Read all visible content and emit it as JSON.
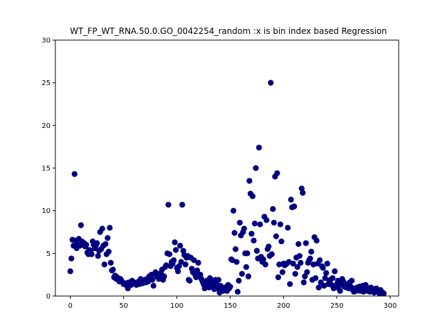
{
  "chart_data": {
    "type": "scatter",
    "title": "WT_FP_WT_RNA.50.0.GO_0042254_random :x is bin index based Regression",
    "xlabel": "",
    "ylabel": "",
    "xlim": [
      -14,
      308
    ],
    "ylim": [
      0,
      30
    ],
    "xticks": [
      0,
      50,
      100,
      150,
      200,
      250,
      300
    ],
    "yticks": [
      0,
      5,
      10,
      15,
      20,
      25,
      30
    ],
    "grid": false,
    "legend": "none",
    "marker_color": "#000080",
    "series": [
      {
        "points": [
          [
            0,
            2.9
          ],
          [
            1,
            4.4
          ],
          [
            2,
            6.6
          ],
          [
            3,
            5.9
          ],
          [
            4,
            14.3
          ],
          [
            5,
            6.5
          ],
          [
            6,
            5.6
          ],
          [
            7,
            6.0
          ],
          [
            8,
            6.7
          ],
          [
            9,
            5.9
          ],
          [
            10,
            8.3
          ],
          [
            11,
            6.4
          ],
          [
            12,
            6.0
          ],
          [
            13,
            6.2
          ],
          [
            14,
            5.8
          ],
          [
            15,
            6.0
          ],
          [
            16,
            5.1
          ],
          [
            17,
            4.9
          ],
          [
            18,
            5.4
          ],
          [
            19,
            5.3
          ],
          [
            20,
            4.9
          ],
          [
            21,
            6.4
          ],
          [
            22,
            6.0
          ],
          [
            23,
            5.6
          ],
          [
            24,
            5.9
          ],
          [
            25,
            6.2
          ],
          [
            26,
            4.7
          ],
          [
            27,
            5.3
          ],
          [
            28,
            7.5
          ],
          [
            29,
            5.5
          ],
          [
            30,
            7.9
          ],
          [
            31,
            5.9
          ],
          [
            32,
            3.7
          ],
          [
            33,
            6.1
          ],
          [
            34,
            4.9
          ],
          [
            35,
            6.8
          ],
          [
            36,
            5.2
          ],
          [
            37,
            8.0
          ],
          [
            38,
            3.9
          ],
          [
            39,
            3.0
          ],
          [
            40,
            3.1
          ],
          [
            41,
            2.2
          ],
          [
            42,
            2.4
          ],
          [
            43,
            2.0
          ],
          [
            44,
            2.2
          ],
          [
            45,
            1.9
          ],
          [
            46,
            1.7
          ],
          [
            47,
            2.0
          ],
          [
            48,
            1.8
          ],
          [
            50,
            1.4
          ],
          [
            52,
            1.5
          ],
          [
            53,
            1.2
          ],
          [
            54,
            0.9
          ],
          [
            55,
            1.6
          ],
          [
            57,
            1.3
          ],
          [
            58,
            1.8
          ],
          [
            60,
            1.6
          ],
          [
            62,
            1.3
          ],
          [
            63,
            1.5
          ],
          [
            64,
            1.7
          ],
          [
            65,
            1.4
          ],
          [
            66,
            2.0
          ],
          [
            67,
            1.8
          ],
          [
            68,
            1.5
          ],
          [
            70,
            1.9
          ],
          [
            71,
            1.6
          ],
          [
            72,
            2.0
          ],
          [
            73,
            1.7
          ],
          [
            74,
            2.3
          ],
          [
            75,
            2.1
          ],
          [
            76,
            2.5
          ],
          [
            77,
            1.9
          ],
          [
            78,
            1.2
          ],
          [
            79,
            2.6
          ],
          [
            80,
            2.8
          ],
          [
            81,
            2.3
          ],
          [
            82,
            2.4
          ],
          [
            83,
            2.0
          ],
          [
            84,
            2.1
          ],
          [
            85,
            2.7
          ],
          [
            86,
            3.1
          ],
          [
            87,
            1.9
          ],
          [
            88,
            2.3
          ],
          [
            89,
            3.4
          ],
          [
            90,
            3.6
          ],
          [
            91,
            5.0
          ],
          [
            92,
            10.7
          ],
          [
            93,
            4.9
          ],
          [
            94,
            3.5
          ],
          [
            95,
            4.0
          ],
          [
            96,
            3.8
          ],
          [
            97,
            4.2
          ],
          [
            98,
            6.3
          ],
          [
            99,
            5.4
          ],
          [
            100,
            3.3
          ],
          [
            101,
            2.9
          ],
          [
            102,
            3.5
          ],
          [
            103,
            5.9
          ],
          [
            104,
            4.0
          ],
          [
            105,
            10.7
          ],
          [
            106,
            5.3
          ],
          [
            107,
            4.8
          ],
          [
            108,
            3.7
          ],
          [
            109,
            4.5
          ],
          [
            110,
            4.7
          ],
          [
            111,
            1.9
          ],
          [
            112,
            1.8
          ],
          [
            113,
            4.5
          ],
          [
            114,
            3.2
          ],
          [
            115,
            2.8
          ],
          [
            116,
            4.2
          ],
          [
            117,
            2.5
          ],
          [
            118,
            2.2
          ],
          [
            119,
            3.0
          ],
          [
            120,
            3.9
          ],
          [
            121,
            2.3
          ],
          [
            122,
            2.5
          ],
          [
            123,
            2.0
          ],
          [
            124,
            1.7
          ],
          [
            125,
            1.4
          ],
          [
            126,
            0.9
          ],
          [
            127,
            1.1
          ],
          [
            128,
            1.8
          ],
          [
            129,
            1.3
          ],
          [
            130,
            1.0
          ],
          [
            131,
            2.1
          ],
          [
            132,
            1.6
          ],
          [
            133,
            1.1
          ],
          [
            134,
            1.5
          ],
          [
            135,
            0.8
          ],
          [
            136,
            1.9
          ],
          [
            137,
            1.4
          ],
          [
            138,
            0.9
          ],
          [
            139,
            1.9
          ],
          [
            140,
            0.4
          ],
          [
            141,
            1.2
          ],
          [
            142,
            0.7
          ],
          [
            143,
            0.6
          ],
          [
            144,
            0.9
          ],
          [
            145,
            1.0
          ],
          [
            146,
            0.8
          ],
          [
            147,
            0.6
          ],
          [
            148,
            1.3
          ],
          [
            149,
            0.9
          ],
          [
            150,
            1.1
          ],
          [
            151,
            4.3
          ],
          [
            152,
            4.2
          ],
          [
            153,
            10.0
          ],
          [
            154,
            7.4
          ],
          [
            155,
            5.5
          ],
          [
            156,
            4.0
          ],
          [
            157,
            0.5
          ],
          [
            158,
            1.8
          ],
          [
            159,
            8.6
          ],
          [
            160,
            7.1
          ],
          [
            161,
            2.6
          ],
          [
            162,
            7.5
          ],
          [
            163,
            7.9
          ],
          [
            164,
            5.0
          ],
          [
            165,
            3.4
          ],
          [
            166,
            5.0
          ],
          [
            167,
            2.3
          ],
          [
            168,
            13.5
          ],
          [
            169,
            12.0
          ],
          [
            170,
            7.3
          ],
          [
            171,
            11.7
          ],
          [
            172,
            6.5
          ],
          [
            173,
            8.5
          ],
          [
            174,
            15.0
          ],
          [
            175,
            5.3
          ],
          [
            176,
            4.4
          ],
          [
            177,
            17.4
          ],
          [
            178,
            8.4
          ],
          [
            179,
            4.6
          ],
          [
            180,
            4.0
          ],
          [
            181,
            4.3
          ],
          [
            182,
            9.3
          ],
          [
            183,
            3.7
          ],
          [
            184,
            8.9
          ],
          [
            185,
            5.5
          ],
          [
            186,
            5.8
          ],
          [
            187,
            4.7
          ],
          [
            188,
            25.0
          ],
          [
            189,
            4.9
          ],
          [
            190,
            10.2
          ],
          [
            191,
            8.6
          ],
          [
            192,
            14.0
          ],
          [
            193,
            7.0
          ],
          [
            194,
            14.4
          ],
          [
            195,
            2.2
          ],
          [
            196,
            3.7
          ],
          [
            197,
            8.4
          ],
          [
            198,
            6.4
          ],
          [
            199,
            2.8
          ],
          [
            200,
            3.8
          ],
          [
            201,
            3.6
          ],
          [
            202,
            3.7
          ],
          [
            203,
            3.8
          ],
          [
            204,
            8.0
          ],
          [
            205,
            4.0
          ],
          [
            206,
            1.4
          ],
          [
            207,
            11.3
          ],
          [
            208,
            10.4
          ],
          [
            209,
            3.8
          ],
          [
            210,
            10.5
          ],
          [
            211,
            2.6
          ],
          [
            212,
            4.5
          ],
          [
            213,
            3.4
          ],
          [
            214,
            6.1
          ],
          [
            215,
            4.7
          ],
          [
            216,
            3.9
          ],
          [
            217,
            12.6
          ],
          [
            218,
            12.1
          ],
          [
            219,
            1.6
          ],
          [
            220,
            2.3
          ],
          [
            221,
            6.2
          ],
          [
            222,
            2.8
          ],
          [
            223,
            3.9
          ],
          [
            224,
            4.2
          ],
          [
            225,
            4.4
          ],
          [
            226,
            5.2
          ],
          [
            227,
            1.9
          ],
          [
            228,
            3.7
          ],
          [
            229,
            6.9
          ],
          [
            230,
            2.1
          ],
          [
            231,
            6.5
          ],
          [
            232,
            3.8
          ],
          [
            233,
            1.0
          ],
          [
            234,
            4.2
          ],
          [
            235,
            1.6
          ],
          [
            236,
            3.5
          ],
          [
            237,
            3.3
          ],
          [
            238,
            1.2
          ],
          [
            239,
            2.1
          ],
          [
            240,
            2.7
          ],
          [
            241,
            3.8
          ],
          [
            242,
            1.4
          ],
          [
            243,
            1.8
          ],
          [
            244,
            1.9
          ],
          [
            245,
            1.3
          ],
          [
            246,
            2.1
          ],
          [
            247,
            0.9
          ],
          [
            248,
            2.9
          ],
          [
            249,
            1.0
          ],
          [
            250,
            1.4
          ],
          [
            251,
            1.8
          ],
          [
            252,
            1.2
          ],
          [
            253,
            0.6
          ],
          [
            254,
            1.5
          ],
          [
            255,
            2.0
          ],
          [
            256,
            1.7
          ],
          [
            257,
            1.1
          ],
          [
            258,
            1.4
          ],
          [
            259,
            1.0
          ],
          [
            260,
            1.3
          ],
          [
            261,
            0.9
          ],
          [
            262,
            1.6
          ],
          [
            263,
            1.1
          ],
          [
            264,
            1.8
          ],
          [
            265,
            0.7
          ],
          [
            266,
            0.5
          ],
          [
            267,
            0.9
          ],
          [
            268,
            0.6
          ],
          [
            269,
            1.0
          ],
          [
            270,
            0.8
          ],
          [
            271,
            1.1
          ],
          [
            272,
            0.6
          ],
          [
            273,
            0.9
          ],
          [
            274,
            1.2
          ],
          [
            275,
            0.5
          ],
          [
            276,
            0.8
          ],
          [
            277,
            1.3
          ],
          [
            278,
            0.7
          ],
          [
            279,
            0.6
          ],
          [
            280,
            0.9
          ],
          [
            281,
            0.5
          ],
          [
            282,
            1.0
          ],
          [
            283,
            0.6
          ],
          [
            284,
            0.8
          ],
          [
            285,
            0.4
          ],
          [
            286,
            0.7
          ],
          [
            287,
            0.9
          ],
          [
            288,
            0.5
          ],
          [
            289,
            0.6
          ],
          [
            290,
            0.3
          ],
          [
            291,
            0.7
          ],
          [
            292,
            0.5
          ],
          [
            293,
            0.4
          ],
          [
            294,
            0.3
          ]
        ]
      }
    ]
  }
}
